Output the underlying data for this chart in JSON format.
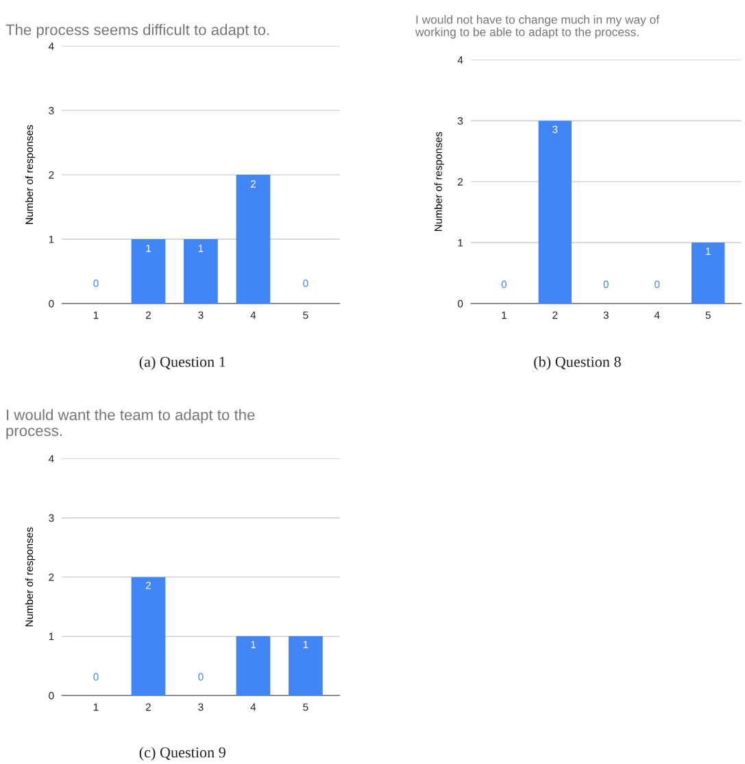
{
  "chart_data": [
    {
      "type": "bar",
      "title": "The process seems difficult to adapt to.",
      "ylabel": "Number of responses",
      "categories": [
        "1",
        "2",
        "3",
        "4",
        "5"
      ],
      "values": [
        0,
        1,
        1,
        2,
        0
      ],
      "color": "#4285f4",
      "ylim": [
        0,
        4
      ],
      "yticks": [
        0,
        1,
        2,
        3,
        4
      ],
      "grid": "y",
      "data_labels": true,
      "annotations": [
        "(a) Question 1"
      ]
    },
    {
      "type": "bar",
      "title": "I would not have to change much in my way of\nworking to be able to adapt to the process.",
      "ylabel": "Number of responses",
      "categories": [
        "1",
        "2",
        "3",
        "4",
        "5"
      ],
      "values": [
        0,
        3,
        0,
        0,
        1
      ],
      "color": "#4285f4",
      "ylim": [
        0,
        4
      ],
      "yticks": [
        0,
        1,
        2,
        3,
        4
      ],
      "grid": "y",
      "data_labels": true,
      "annotations": [
        "(b) Question 8"
      ]
    },
    {
      "type": "bar",
      "title": "I would want the team to adapt to the\nprocess.",
      "ylabel": "Number of responses",
      "categories": [
        "1",
        "2",
        "3",
        "4",
        "5"
      ],
      "values": [
        0,
        2,
        0,
        1,
        1
      ],
      "color": "#4285f4",
      "ylim": [
        0,
        4
      ],
      "yticks": [
        0,
        1,
        2,
        3,
        4
      ],
      "grid": "y",
      "data_labels": true,
      "annotations": [
        "(c) Question 9"
      ]
    }
  ]
}
